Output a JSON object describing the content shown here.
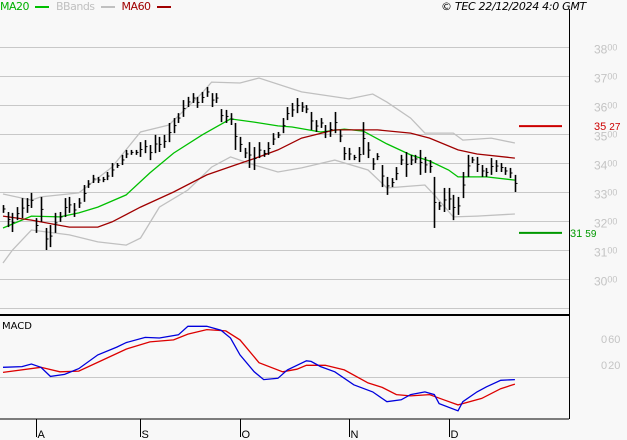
{
  "legend": {
    "ma20": {
      "label": "MA20",
      "color": "#00c000"
    },
    "bbands": {
      "label": "BBands",
      "color": "#c0c0c0"
    },
    "ma60": {
      "label": "MA60",
      "color": "#a00000"
    }
  },
  "copyright": "© TEC 22/12/2024 4:0 GMT",
  "colors": {
    "background": "#f8f8f8",
    "grid": "#c8c8c8",
    "axis_label": "#c4c4c4",
    "bars": "#000000",
    "macd": "#0000dd",
    "signal": "#dd0000",
    "resistance": "#cc0000",
    "support": "#009900"
  },
  "chart_data": [
    {
      "type": "ohlc",
      "panel": "price",
      "ylim": [
        29,
        38.5
      ],
      "grid": true,
      "y_ticks": [
        {
          "major": "38",
          "minor": "00",
          "value": 38
        },
        {
          "major": "37",
          "minor": "00",
          "value": 37
        },
        {
          "major": "36",
          "minor": "00",
          "value": 36
        },
        {
          "major": "35",
          "minor": "00",
          "value": 35
        },
        {
          "major": "34",
          "minor": "00",
          "value": 34
        },
        {
          "major": "33",
          "minor": "00",
          "value": 33
        },
        {
          "major": "32",
          "minor": "00",
          "value": 32
        },
        {
          "major": "31",
          "minor": "00",
          "value": 31
        },
        {
          "major": "30",
          "minor": "00",
          "value": 30
        },
        {
          "value": 29
        }
      ],
      "x_ticks": [
        {
          "label": "A",
          "bar": 7
        },
        {
          "label": "S",
          "bar": 29
        },
        {
          "label": "O",
          "bar": 50
        },
        {
          "label": "N",
          "bar": 73
        },
        {
          "label": "D",
          "bar": 94
        }
      ],
      "bars_high_low": [
        [
          32.55,
          32.28
        ],
        [
          32.31,
          31.79
        ],
        [
          32.28,
          31.62
        ],
        [
          32.48,
          32.03
        ],
        [
          32.79,
          32.1
        ],
        [
          32.79,
          32.28
        ],
        [
          32.97,
          32.45
        ],
        [
          32.1,
          31.59
        ],
        [
          32.83,
          31.97
        ],
        [
          31.76,
          31.0
        ],
        [
          31.86,
          31.1
        ],
        [
          32.28,
          31.59
        ],
        [
          32.31,
          31.97
        ],
        [
          32.79,
          32.14
        ],
        [
          32.83,
          32.28
        ],
        [
          32.62,
          32.14
        ],
        [
          32.79,
          32.45
        ],
        [
          33.24,
          32.66
        ],
        [
          33.41,
          33.14
        ],
        [
          33.59,
          33.31
        ],
        [
          33.52,
          33.31
        ],
        [
          33.52,
          33.34
        ],
        [
          33.69,
          33.41
        ],
        [
          34.0,
          33.52
        ],
        [
          34.0,
          33.83
        ],
        [
          34.28,
          33.93
        ],
        [
          34.45,
          34.17
        ],
        [
          34.45,
          34.28
        ],
        [
          34.45,
          34.28
        ],
        [
          34.72,
          34.21
        ],
        [
          34.79,
          34.34
        ],
        [
          34.62,
          34.1
        ],
        [
          34.97,
          34.34
        ],
        [
          34.9,
          34.38
        ],
        [
          34.97,
          34.52
        ],
        [
          35.38,
          34.72
        ],
        [
          35.55,
          35.03
        ],
        [
          35.72,
          35.38
        ],
        [
          36.17,
          35.59
        ],
        [
          36.28,
          35.93
        ],
        [
          36.41,
          36.07
        ],
        [
          36.28,
          35.9
        ],
        [
          36.45,
          36.07
        ],
        [
          36.62,
          36.28
        ],
        [
          36.41,
          35.93
        ],
        [
          36.41,
          36.07
        ],
        [
          35.86,
          35.41
        ],
        [
          35.83,
          35.38
        ],
        [
          35.72,
          35.31
        ],
        [
          35.38,
          34.45
        ],
        [
          34.9,
          34.38
        ],
        [
          34.52,
          34.17
        ],
        [
          34.72,
          33.83
        ],
        [
          34.55,
          33.76
        ],
        [
          34.72,
          34.17
        ],
        [
          34.45,
          34.21
        ],
        [
          34.72,
          34.28
        ],
        [
          35.03,
          34.62
        ],
        [
          35.07,
          34.86
        ],
        [
          35.55,
          35.03
        ],
        [
          35.93,
          35.48
        ],
        [
          36.07,
          35.59
        ],
        [
          36.24,
          35.72
        ],
        [
          36.1,
          35.76
        ],
        [
          36.0,
          35.72
        ],
        [
          35.76,
          35.14
        ],
        [
          35.48,
          35.07
        ],
        [
          35.55,
          35.21
        ],
        [
          35.31,
          34.86
        ],
        [
          35.41,
          34.9
        ],
        [
          35.76,
          35.03
        ],
        [
          35.14,
          34.72
        ],
        [
          34.55,
          34.1
        ],
        [
          34.52,
          34.1
        ],
        [
          34.28,
          34.1
        ],
        [
          34.55,
          34.03
        ],
        [
          35.41,
          34.28
        ],
        [
          34.72,
          34.17
        ],
        [
          34.17,
          33.76
        ],
        [
          34.34,
          34.1
        ],
        [
          33.93,
          33.17
        ],
        [
          33.52,
          32.9
        ],
        [
          33.48,
          33.17
        ],
        [
          33.86,
          33.41
        ],
        [
          34.28,
          33.93
        ],
        [
          34.38,
          33.52
        ],
        [
          34.28,
          33.93
        ],
        [
          34.28,
          34.0
        ],
        [
          34.45,
          33.59
        ],
        [
          34.21,
          33.66
        ],
        [
          34.1,
          33.66
        ],
        [
          33.52,
          31.76
        ],
        [
          32.66,
          32.38
        ],
        [
          33.14,
          32.31
        ],
        [
          33.14,
          32.38
        ],
        [
          32.9,
          32.03
        ],
        [
          32.83,
          32.21
        ],
        [
          33.69,
          32.79
        ],
        [
          34.28,
          33.52
        ],
        [
          34.21,
          34.0
        ],
        [
          34.21,
          33.69
        ],
        [
          33.93,
          33.52
        ],
        [
          33.83,
          33.52
        ],
        [
          34.17,
          33.59
        ],
        [
          34.1,
          33.69
        ],
        [
          34.0,
          33.69
        ],
        [
          33.86,
          33.59
        ],
        [
          33.83,
          33.48
        ],
        [
          33.59,
          33.0
        ]
      ],
      "series": [
        {
          "name": "MA20",
          "color": "#00c000",
          "points": [
            [
              0,
              31.76
            ],
            [
              6,
              32.17
            ],
            [
              12,
              32.14
            ],
            [
              16,
              32.28
            ],
            [
              20,
              32.48
            ],
            [
              26,
              32.9
            ],
            [
              31,
              33.66
            ],
            [
              36,
              34.34
            ],
            [
              42,
              34.97
            ],
            [
              48,
              35.52
            ],
            [
              53,
              35.41
            ],
            [
              58,
              35.28
            ],
            [
              61,
              35.24
            ],
            [
              67,
              35.07
            ],
            [
              72,
              35.17
            ],
            [
              76,
              35.1
            ],
            [
              81,
              34.66
            ],
            [
              86,
              34.28
            ],
            [
              90,
              34.07
            ],
            [
              94,
              33.76
            ],
            [
              96,
              33.52
            ],
            [
              102,
              33.52
            ],
            [
              108,
              33.41
            ]
          ]
        },
        {
          "name": "MA60",
          "color": "#a00000",
          "points": [
            [
              0,
              32.17
            ],
            [
              6,
              32.03
            ],
            [
              14,
              31.79
            ],
            [
              20,
              31.79
            ],
            [
              23,
              31.97
            ],
            [
              29,
              32.48
            ],
            [
              36,
              33.0
            ],
            [
              43,
              33.59
            ],
            [
              49,
              33.93
            ],
            [
              54,
              34.21
            ],
            [
              58,
              34.45
            ],
            [
              63,
              34.86
            ],
            [
              70,
              35.14
            ],
            [
              79,
              35.14
            ],
            [
              86,
              35.03
            ],
            [
              90,
              34.86
            ],
            [
              96,
              34.45
            ],
            [
              100,
              34.31
            ],
            [
              108,
              34.17
            ]
          ]
        },
        {
          "name": "BBands",
          "color": "#c0c0c0",
          "band": "upper",
          "points": [
            [
              0,
              32.93
            ],
            [
              6,
              32.72
            ],
            [
              8,
              32.83
            ],
            [
              16,
              32.97
            ],
            [
              23,
              33.86
            ],
            [
              29,
              35.07
            ],
            [
              35,
              35.31
            ],
            [
              42,
              36.41
            ],
            [
              44,
              36.79
            ],
            [
              50,
              36.76
            ],
            [
              54,
              36.93
            ],
            [
              63,
              36.45
            ],
            [
              73,
              36.21
            ],
            [
              78,
              36.38
            ],
            [
              81,
              36.1
            ],
            [
              86,
              35.55
            ],
            [
              89,
              35.03
            ],
            [
              95,
              35.03
            ],
            [
              97,
              34.79
            ],
            [
              103,
              34.86
            ],
            [
              108,
              34.69
            ]
          ]
        },
        {
          "name": "BBands",
          "color": "#c0c0c0",
          "band": "lower",
          "points": [
            [
              0,
              30.55
            ],
            [
              2,
              31.0
            ],
            [
              6,
              31.69
            ],
            [
              14,
              31.52
            ],
            [
              20,
              31.28
            ],
            [
              26,
              31.17
            ],
            [
              29,
              31.41
            ],
            [
              33,
              32.48
            ],
            [
              39,
              33.07
            ],
            [
              44,
              33.86
            ],
            [
              48,
              34.21
            ],
            [
              53,
              33.93
            ],
            [
              58,
              33.69
            ],
            [
              63,
              33.83
            ],
            [
              70,
              34.1
            ],
            [
              77,
              33.76
            ],
            [
              81,
              33.14
            ],
            [
              89,
              33.24
            ],
            [
              91,
              32.9
            ],
            [
              95,
              32.14
            ],
            [
              100,
              32.17
            ],
            [
              108,
              32.24
            ]
          ]
        }
      ],
      "levels": [
        {
          "kind": "resistance",
          "value": 35.27,
          "major": "35",
          "minor": "27",
          "color": "#cc0000"
        },
        {
          "kind": "support",
          "value": 31.59,
          "major": "31",
          "minor": "59",
          "color": "#009900"
        }
      ]
    },
    {
      "type": "line",
      "panel": "macd",
      "title": "MACD",
      "ylim": [
        -0.65,
        0.95
      ],
      "zero_line": true,
      "y_ticks": [
        {
          "major": "0",
          "minor": "60",
          "value": 0.6
        },
        {
          "major": "0",
          "minor": "20",
          "value": 0.2
        }
      ],
      "series": [
        {
          "color": "#0000dd",
          "points": [
            [
              0,
              0.15
            ],
            [
              4,
              0.16
            ],
            [
              6,
              0.2
            ],
            [
              8,
              0.15
            ],
            [
              10,
              0.01
            ],
            [
              13,
              0.04
            ],
            [
              16,
              0.13
            ],
            [
              20,
              0.34
            ],
            [
              24,
              0.46
            ],
            [
              26,
              0.53
            ],
            [
              30,
              0.61
            ],
            [
              33,
              0.6
            ],
            [
              37,
              0.65
            ],
            [
              39,
              0.78
            ],
            [
              43,
              0.78
            ],
            [
              46,
              0.72
            ],
            [
              48,
              0.6
            ],
            [
              50,
              0.34
            ],
            [
              53,
              0.08
            ],
            [
              55,
              -0.04
            ],
            [
              58,
              -0.02
            ],
            [
              60,
              0.11
            ],
            [
              64,
              0.25
            ],
            [
              65,
              0.24
            ],
            [
              67,
              0.16
            ],
            [
              70,
              0.08
            ],
            [
              74,
              -0.12
            ],
            [
              78,
              -0.23
            ],
            [
              81,
              -0.38
            ],
            [
              84,
              -0.35
            ],
            [
              86,
              -0.27
            ],
            [
              89,
              -0.23
            ],
            [
              91,
              -0.27
            ],
            [
              92,
              -0.41
            ],
            [
              96,
              -0.52
            ],
            [
              97,
              -0.38
            ],
            [
              100,
              -0.23
            ],
            [
              102,
              -0.15
            ],
            [
              105,
              -0.05
            ],
            [
              108,
              -0.04
            ]
          ]
        },
        {
          "color": "#dd0000",
          "points": [
            [
              0,
              0.07
            ],
            [
              8,
              0.15
            ],
            [
              12,
              0.08
            ],
            [
              16,
              0.09
            ],
            [
              21,
              0.26
            ],
            [
              26,
              0.43
            ],
            [
              31,
              0.54
            ],
            [
              36,
              0.57
            ],
            [
              39,
              0.66
            ],
            [
              43,
              0.73
            ],
            [
              47,
              0.71
            ],
            [
              50,
              0.57
            ],
            [
              54,
              0.22
            ],
            [
              59,
              0.08
            ],
            [
              62,
              0.12
            ],
            [
              64,
              0.18
            ],
            [
              68,
              0.18
            ],
            [
              72,
              0.11
            ],
            [
              77,
              -0.09
            ],
            [
              80,
              -0.16
            ],
            [
              83,
              -0.27
            ],
            [
              86,
              -0.29
            ],
            [
              90,
              -0.27
            ],
            [
              93,
              -0.35
            ],
            [
              96,
              -0.43
            ],
            [
              101,
              -0.33
            ],
            [
              105,
              -0.18
            ],
            [
              108,
              -0.11
            ]
          ]
        }
      ]
    }
  ]
}
